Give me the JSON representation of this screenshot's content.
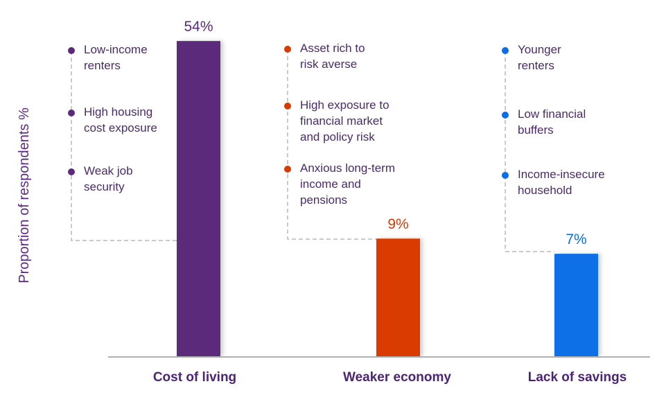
{
  "chart_data": {
    "type": "bar",
    "ylabel": "Proportion of respondents %",
    "categories": [
      "Cost of living",
      "Weaker economy",
      "Lack of savings"
    ],
    "values": [
      54,
      9,
      7
    ],
    "value_labels": [
      "54%",
      "9%",
      "7%"
    ],
    "colors": [
      "#5b2a7a",
      "#d93a00",
      "#0a6fe6"
    ],
    "grid": false,
    "annotations": [
      {
        "category": "Cost of living",
        "items": [
          [
            "Low-income",
            "renters"
          ],
          [
            "High housing",
            "cost exposure"
          ],
          [
            "Weak job",
            "security"
          ]
        ]
      },
      {
        "category": "Weaker economy",
        "items": [
          [
            "Asset rich to",
            "risk averse"
          ],
          [
            "High exposure to",
            "financial market",
            "and policy risk"
          ],
          [
            "Anxious long-term",
            "income and",
            "pensions"
          ]
        ]
      },
      {
        "category": "Lack of savings",
        "items": [
          [
            "Younger",
            "renters"
          ],
          [
            "Low financial",
            "buffers"
          ],
          [
            "Income-insecure",
            "household"
          ]
        ]
      }
    ]
  }
}
